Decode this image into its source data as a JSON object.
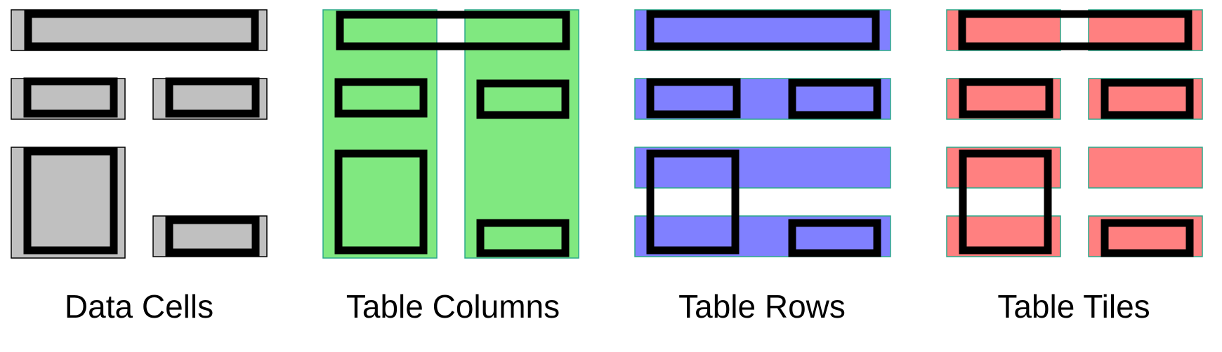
{
  "panels": [
    {
      "key": "cells",
      "label": "Data Cells",
      "fill": "#c0c0c0",
      "outline": "#000000"
    },
    {
      "key": "columns",
      "label": "Table Columns",
      "fill": "#80e880",
      "outline": "#2aa88a"
    },
    {
      "key": "rows",
      "label": "Table Rows",
      "fill": "#8080ff",
      "outline": "#2aa88a"
    },
    {
      "key": "tiles",
      "label": "Table Tiles",
      "fill": "#ff8080",
      "outline": "#2aa88a"
    }
  ],
  "frame_color": "#000000"
}
